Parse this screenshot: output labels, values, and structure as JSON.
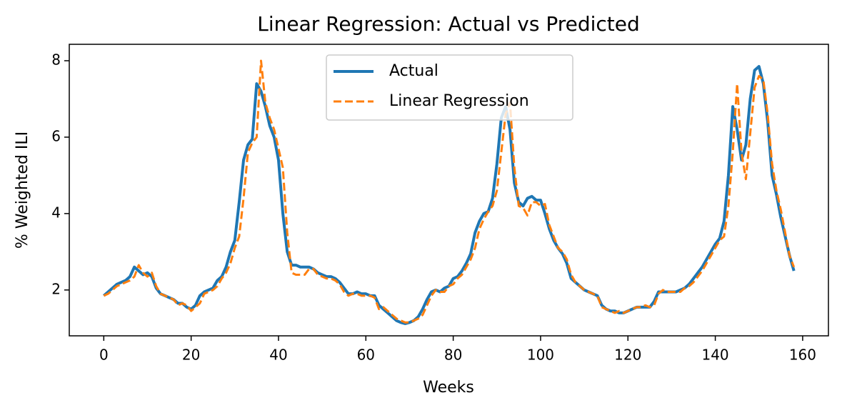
{
  "chart_data": {
    "type": "line",
    "title": "Linear Regression: Actual vs Predicted",
    "xlabel": "Weeks",
    "ylabel": "% Weighted ILI",
    "xlim": [
      -7.9,
      165.9
    ],
    "ylim": [
      0.8,
      8.43
    ],
    "xticks": [
      0,
      20,
      40,
      60,
      80,
      100,
      120,
      140,
      160
    ],
    "yticks": [
      2,
      4,
      6,
      8
    ],
    "grid": false,
    "legend": "upper center",
    "x": [
      0,
      1,
      2,
      3,
      4,
      5,
      6,
      7,
      8,
      9,
      10,
      11,
      12,
      13,
      14,
      15,
      16,
      17,
      18,
      19,
      20,
      21,
      22,
      23,
      24,
      25,
      26,
      27,
      28,
      29,
      30,
      31,
      32,
      33,
      34,
      35,
      36,
      37,
      38,
      39,
      40,
      41,
      42,
      43,
      44,
      45,
      46,
      47,
      48,
      49,
      50,
      51,
      52,
      53,
      54,
      55,
      56,
      57,
      58,
      59,
      60,
      61,
      62,
      63,
      64,
      65,
      66,
      67,
      68,
      69,
      70,
      71,
      72,
      73,
      74,
      75,
      76,
      77,
      78,
      79,
      80,
      81,
      82,
      83,
      84,
      85,
      86,
      87,
      88,
      89,
      90,
      91,
      92,
      93,
      94,
      95,
      96,
      97,
      98,
      99,
      100,
      101,
      102,
      103,
      104,
      105,
      106,
      107,
      108,
      109,
      110,
      111,
      112,
      113,
      114,
      115,
      116,
      117,
      118,
      119,
      120,
      121,
      122,
      123,
      124,
      125,
      126,
      127,
      128,
      129,
      130,
      131,
      132,
      133,
      134,
      135,
      136,
      137,
      138,
      139,
      140,
      141,
      142,
      143,
      144,
      145,
      146,
      147,
      148,
      149,
      150,
      151,
      152,
      153,
      154,
      155,
      156,
      157,
      158
    ],
    "series": [
      {
        "name": "Actual",
        "color": "#1f77b4",
        "dash": false,
        "values": [
          1.85,
          1.95,
          2.05,
          2.15,
          2.2,
          2.25,
          2.35,
          2.6,
          2.5,
          2.4,
          2.45,
          2.35,
          2.05,
          1.9,
          1.85,
          1.8,
          1.75,
          1.65,
          1.65,
          1.55,
          1.5,
          1.6,
          1.85,
          1.95,
          2.0,
          2.05,
          2.25,
          2.35,
          2.6,
          3.0,
          3.3,
          4.3,
          5.4,
          5.8,
          5.95,
          7.4,
          7.2,
          6.8,
          6.3,
          6.0,
          5.4,
          4.0,
          3.0,
          2.65,
          2.65,
          2.6,
          2.6,
          2.6,
          2.55,
          2.45,
          2.4,
          2.35,
          2.35,
          2.3,
          2.2,
          2.05,
          1.9,
          1.9,
          1.95,
          1.9,
          1.9,
          1.85,
          1.85,
          1.6,
          1.5,
          1.4,
          1.3,
          1.2,
          1.15,
          1.12,
          1.15,
          1.2,
          1.3,
          1.5,
          1.75,
          1.95,
          2.0,
          1.95,
          2.05,
          2.1,
          2.3,
          2.35,
          2.5,
          2.7,
          2.95,
          3.5,
          3.8,
          4.0,
          4.05,
          4.4,
          5.3,
          6.5,
          6.8,
          6.2,
          4.8,
          4.3,
          4.2,
          4.4,
          4.45,
          4.35,
          4.35,
          4.0,
          3.6,
          3.3,
          3.1,
          2.95,
          2.7,
          2.3,
          2.2,
          2.1,
          2.0,
          1.95,
          1.9,
          1.85,
          1.6,
          1.5,
          1.45,
          1.45,
          1.4,
          1.4,
          1.45,
          1.5,
          1.55,
          1.55,
          1.55,
          1.55,
          1.7,
          1.95,
          1.95,
          1.95,
          1.95,
          1.95,
          2.0,
          2.05,
          2.15,
          2.3,
          2.45,
          2.6,
          2.8,
          3.0,
          3.2,
          3.35,
          3.8,
          5.0,
          6.8,
          6.2,
          5.4,
          5.8,
          7.0,
          7.75,
          7.85,
          7.4,
          6.4,
          5.0,
          4.5,
          3.9,
          3.4,
          2.9,
          2.5
        ]
      },
      {
        "name": "Linear Regression",
        "color": "#ff7f0e",
        "dash": true,
        "values": [
          1.85,
          1.9,
          2.0,
          2.1,
          2.15,
          2.2,
          2.25,
          2.35,
          2.65,
          2.45,
          2.35,
          2.45,
          2.1,
          1.9,
          1.85,
          1.8,
          1.75,
          1.6,
          1.65,
          1.6,
          1.45,
          1.55,
          1.65,
          1.9,
          1.95,
          2.0,
          2.1,
          2.3,
          2.45,
          2.7,
          3.1,
          3.4,
          4.4,
          5.6,
          5.85,
          6.0,
          8.0,
          6.9,
          6.5,
          6.2,
          5.7,
          5.2,
          3.5,
          2.45,
          2.4,
          2.4,
          2.4,
          2.55,
          2.55,
          2.4,
          2.35,
          2.3,
          2.3,
          2.25,
          2.15,
          1.95,
          1.85,
          1.9,
          1.9,
          1.85,
          1.85,
          1.85,
          1.8,
          1.5,
          1.55,
          1.45,
          1.35,
          1.25,
          1.2,
          1.15,
          1.15,
          1.2,
          1.25,
          1.35,
          1.6,
          1.85,
          2.0,
          1.95,
          1.95,
          2.1,
          2.15,
          2.3,
          2.4,
          2.6,
          2.8,
          3.1,
          3.6,
          3.85,
          4.05,
          4.2,
          4.6,
          5.6,
          6.6,
          6.9,
          5.2,
          4.2,
          4.15,
          3.95,
          4.3,
          4.3,
          4.2,
          4.25,
          3.7,
          3.4,
          3.1,
          3.0,
          2.8,
          2.4,
          2.2,
          2.1,
          2.0,
          1.95,
          1.9,
          1.85,
          1.55,
          1.5,
          1.45,
          1.4,
          1.45,
          1.4,
          1.45,
          1.5,
          1.55,
          1.55,
          1.6,
          1.55,
          1.6,
          1.9,
          2.0,
          1.95,
          1.95,
          1.95,
          1.95,
          2.05,
          2.1,
          2.2,
          2.35,
          2.5,
          2.7,
          2.9,
          3.1,
          3.3,
          3.4,
          4.2,
          5.6,
          7.4,
          5.6,
          4.9,
          6.1,
          7.3,
          7.6,
          7.5,
          6.6,
          5.3,
          4.6,
          4.1,
          3.5,
          2.9,
          2.6
        ]
      }
    ]
  }
}
